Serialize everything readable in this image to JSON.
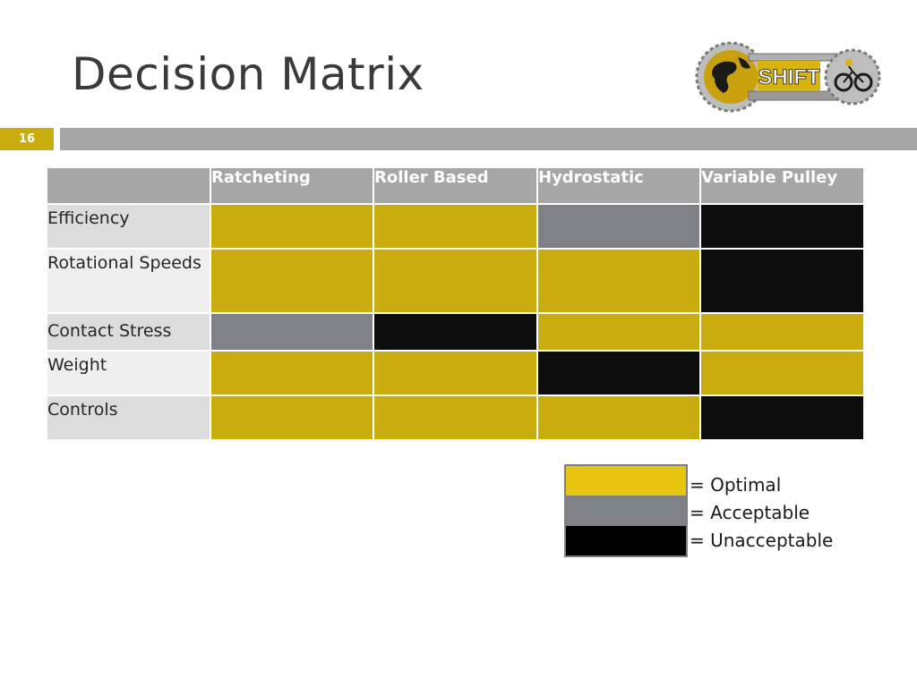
{
  "slide": {
    "title": "Decision Matrix",
    "page_number": "16"
  },
  "colors": {
    "accent": "#c9ad0e",
    "bar_gray": "#a6a6a6",
    "optimal": "#c9ad0e",
    "acceptable": "#7f8088",
    "unacceptable": "#0d0d0d"
  },
  "logo": {
    "text": "SHIFT",
    "icon": "globe-bicycle-gear-logo"
  },
  "matrix": {
    "columns": [
      "Ratcheting",
      "Roller Based",
      "Hydrostatic",
      "Variable Pulley"
    ],
    "rows": [
      {
        "label": "Efficiency",
        "ratings": [
          "optimal",
          "optimal",
          "acceptable",
          "unacceptable"
        ]
      },
      {
        "label": "Rotational Speeds",
        "ratings": [
          "optimal",
          "optimal",
          "optimal",
          "unacceptable"
        ]
      },
      {
        "label": "Contact Stress",
        "ratings": [
          "acceptable",
          "unacceptable",
          "optimal",
          "optimal"
        ]
      },
      {
        "label": "Weight",
        "ratings": [
          "optimal",
          "optimal",
          "unacceptable",
          "optimal"
        ]
      },
      {
        "label": "Controls",
        "ratings": [
          "optimal",
          "optimal",
          "optimal",
          "unacceptable"
        ]
      }
    ]
  },
  "legend": {
    "items": [
      {
        "label": "= Optimal",
        "color": "#e6c410"
      },
      {
        "label": "= Acceptable",
        "color": "#7f8088"
      },
      {
        "label": "= Unacceptable",
        "color": "#000000"
      }
    ]
  }
}
